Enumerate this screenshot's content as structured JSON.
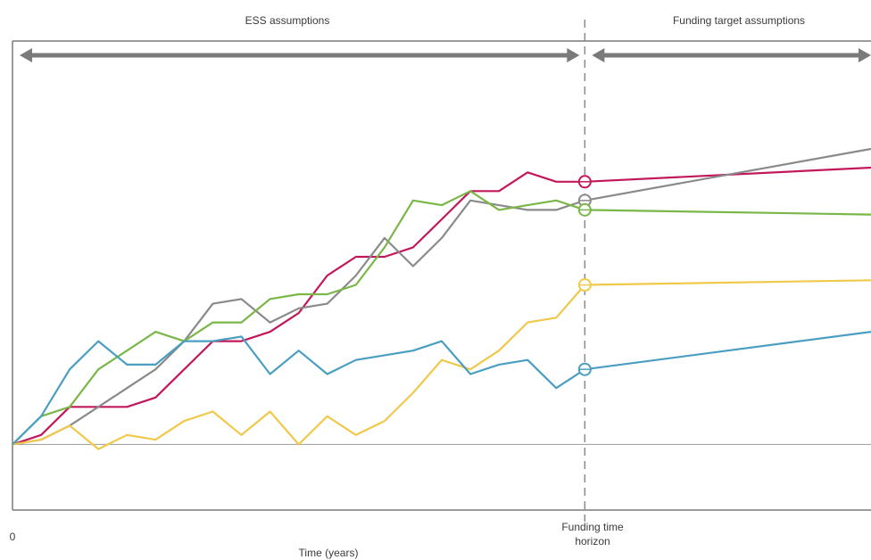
{
  "chart_data": {
    "type": "line",
    "region_labels": {
      "left": "ESS assumptions",
      "right": "Funding target assumptions"
    },
    "xlabel": "Time (years)",
    "x_origin_label": "0",
    "horizon_label": [
      "Funding time",
      "horizon"
    ],
    "horizon_x": 20,
    "xlim": [
      0,
      30
    ],
    "ylim": [
      -7,
      43
    ],
    "baseline_y": 0,
    "grid": false,
    "legend": "none",
    "x": [
      0,
      1,
      2,
      3,
      4,
      5,
      6,
      7,
      8,
      9,
      10,
      11,
      12,
      13,
      14,
      15,
      16,
      17,
      18,
      19,
      20
    ],
    "series": [
      {
        "color": "#c2185b",
        "values": [
          0,
          1,
          4,
          4,
          4,
          5,
          8,
          11,
          11,
          12,
          14,
          18,
          20,
          20,
          21,
          24,
          27,
          27,
          29,
          28,
          28
        ],
        "end": [
          30,
          29.5
        ]
      },
      {
        "color": "#8a8a8a",
        "values": [
          0,
          0.5,
          2,
          4,
          6,
          8,
          11,
          15,
          15.5,
          13,
          14.5,
          15,
          18,
          22,
          19,
          22,
          26,
          25.5,
          25,
          25,
          26
        ],
        "end": [
          30,
          31.5
        ]
      },
      {
        "color": "#7ab648",
        "values": [
          0,
          3,
          4,
          8,
          10,
          12,
          11,
          13,
          13,
          15.5,
          16,
          16,
          17,
          21,
          26,
          25.5,
          27,
          25,
          25.5,
          26,
          25
        ],
        "end": [
          30,
          24.5
        ]
      },
      {
        "color": "#f0c84a",
        "values": [
          0,
          0.5,
          2,
          -0.5,
          1,
          0.5,
          2.5,
          3.5,
          1,
          3.5,
          0,
          3,
          1,
          2.5,
          5.5,
          9,
          8,
          10,
          13,
          13.5,
          17
        ],
        "end": [
          30,
          17.5
        ]
      },
      {
        "color": "#4a9ec2",
        "values": [
          0,
          3,
          8,
          11,
          8.5,
          8.5,
          11,
          11,
          11.5,
          7.5,
          10,
          7.5,
          9,
          9.5,
          10,
          11,
          7.5,
          8.5,
          9,
          6,
          8
        ],
        "end": [
          30,
          12
        ]
      }
    ]
  }
}
